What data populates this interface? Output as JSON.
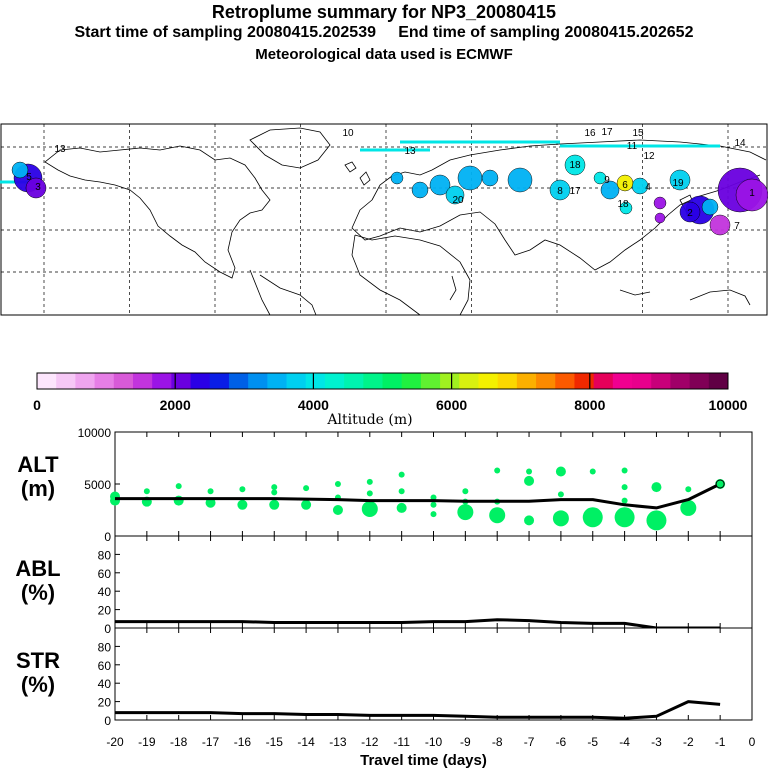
{
  "header": {
    "title": "Retroplume summary for NP3_20080415",
    "sampling_line": "Start time of sampling 20080415.202539     End time of sampling 20080415.202652",
    "met_line": "Meteorological data used is ECMWF"
  },
  "colorbar": {
    "label": "Altitude (m)",
    "tick_labels": [
      "0",
      "2000",
      "4000",
      "6000",
      "8000",
      "10000"
    ],
    "colors": [
      "#fde6fd",
      "#f6c8f6",
      "#efa5ef",
      "#e67ee6",
      "#d85ad8",
      "#c234dd",
      "#9b14e6",
      "#6a00e0",
      "#2a00e6",
      "#0a1ee6",
      "#0060e6",
      "#0090f0",
      "#00b2f4",
      "#00d0f0",
      "#00e6e6",
      "#00f2d0",
      "#00f4b0",
      "#00f48a",
      "#00f064",
      "#20f040",
      "#60f030",
      "#a0f020",
      "#d8f010",
      "#f4f000",
      "#fcd800",
      "#fcb000",
      "#fc8a00",
      "#fc5a00",
      "#f02800",
      "#e6005a",
      "#f00090",
      "#e8008c",
      "#c8007a",
      "#a00068",
      "#800056",
      "#600044"
    ]
  },
  "map": {
    "labels": [
      "13",
      "10",
      "16",
      "17",
      "15",
      "11",
      "12",
      "14",
      "18",
      "3",
      "20",
      "8",
      "5",
      "7",
      "9",
      "6",
      "4",
      "2",
      "1",
      "19",
      "13",
      "17",
      "18"
    ]
  },
  "chart_data": [
    {
      "type": "line",
      "panel": "ALT",
      "ylabel": "ALT (m)",
      "ylabel_lines": [
        "ALT",
        "(m)"
      ],
      "ylim": [
        0,
        10000
      ],
      "yticks": [
        "10000",
        "5000",
        "0"
      ],
      "x": [
        -20,
        -19,
        -18,
        -17,
        -16,
        -15,
        -14,
        -13,
        -12,
        -11,
        -10,
        -9,
        -8,
        -7,
        -6,
        -5,
        -4,
        -3,
        -2,
        -1
      ],
      "series": [
        {
          "name": "mean altitude",
          "values": [
            3600,
            3600,
            3600,
            3600,
            3600,
            3600,
            3550,
            3500,
            3400,
            3400,
            3400,
            3350,
            3350,
            3350,
            3500,
            3500,
            3000,
            2700,
            3500,
            5000
          ]
        }
      ],
      "scatter_color": "#00f064",
      "scatter_points": [
        {
          "x": -20,
          "y": 3800,
          "size": 2
        },
        {
          "x": -20,
          "y": 3400,
          "size": 2
        },
        {
          "x": -19,
          "y": 4300,
          "size": 1
        },
        {
          "x": -19,
          "y": 3300,
          "size": 2
        },
        {
          "x": -18,
          "y": 4800,
          "size": 1
        },
        {
          "x": -18,
          "y": 3400,
          "size": 2
        },
        {
          "x": -17,
          "y": 4300,
          "size": 1
        },
        {
          "x": -17,
          "y": 3200,
          "size": 2
        },
        {
          "x": -16,
          "y": 4500,
          "size": 1
        },
        {
          "x": -16,
          "y": 3000,
          "size": 2
        },
        {
          "x": -15,
          "y": 4700,
          "size": 1
        },
        {
          "x": -15,
          "y": 4200,
          "size": 1
        },
        {
          "x": -15,
          "y": 3000,
          "size": 2
        },
        {
          "x": -14,
          "y": 4600,
          "size": 1
        },
        {
          "x": -14,
          "y": 3000,
          "size": 2
        },
        {
          "x": -13,
          "y": 5000,
          "size": 1
        },
        {
          "x": -13,
          "y": 3700,
          "size": 1
        },
        {
          "x": -13,
          "y": 2500,
          "size": 2
        },
        {
          "x": -12,
          "y": 5200,
          "size": 1
        },
        {
          "x": -12,
          "y": 4100,
          "size": 1
        },
        {
          "x": -12,
          "y": 2600,
          "size": 3
        },
        {
          "x": -11,
          "y": 5900,
          "size": 1
        },
        {
          "x": -11,
          "y": 4300,
          "size": 1
        },
        {
          "x": -11,
          "y": 2700,
          "size": 2
        },
        {
          "x": -10,
          "y": 3700,
          "size": 1
        },
        {
          "x": -10,
          "y": 3000,
          "size": 1
        },
        {
          "x": -10,
          "y": 2100,
          "size": 1
        },
        {
          "x": -9,
          "y": 4300,
          "size": 1
        },
        {
          "x": -9,
          "y": 3300,
          "size": 1
        },
        {
          "x": -9,
          "y": 2300,
          "size": 3
        },
        {
          "x": -8,
          "y": 6300,
          "size": 1
        },
        {
          "x": -8,
          "y": 3300,
          "size": 1
        },
        {
          "x": -8,
          "y": 2000,
          "size": 3
        },
        {
          "x": -7,
          "y": 6200,
          "size": 1
        },
        {
          "x": -7,
          "y": 5300,
          "size": 2
        },
        {
          "x": -7,
          "y": 1500,
          "size": 2
        },
        {
          "x": -6,
          "y": 6200,
          "size": 2
        },
        {
          "x": -6,
          "y": 4000,
          "size": 1
        },
        {
          "x": -6,
          "y": 1700,
          "size": 3
        },
        {
          "x": -5,
          "y": 6200,
          "size": 1
        },
        {
          "x": -5,
          "y": 1800,
          "size": 4
        },
        {
          "x": -4,
          "y": 6300,
          "size": 1
        },
        {
          "x": -4,
          "y": 4700,
          "size": 1
        },
        {
          "x": -4,
          "y": 3400,
          "size": 1
        },
        {
          "x": -4,
          "y": 1800,
          "size": 4
        },
        {
          "x": -3,
          "y": 4700,
          "size": 2
        },
        {
          "x": -3,
          "y": 1500,
          "size": 4
        },
        {
          "x": -2,
          "y": 4500,
          "size": 1
        },
        {
          "x": -2,
          "y": 2700,
          "size": 3
        },
        {
          "x": -1,
          "y": 5000,
          "size": 2
        }
      ]
    },
    {
      "type": "line",
      "panel": "ABL",
      "ylabel": "ABL (%)",
      "ylabel_lines": [
        "ABL",
        "(%)"
      ],
      "ylim": [
        0,
        100
      ],
      "yticks": [
        "80",
        "60",
        "40",
        "20",
        "0"
      ],
      "x": [
        -20,
        -19,
        -18,
        -17,
        -16,
        -15,
        -14,
        -13,
        -12,
        -11,
        -10,
        -9,
        -8,
        -7,
        -6,
        -5,
        -4,
        -3,
        -2,
        -1
      ],
      "series": [
        {
          "name": "fraction in ABL",
          "values": [
            7,
            7,
            7,
            7,
            7,
            6,
            6,
            6,
            6,
            6,
            7,
            7,
            9,
            8,
            6,
            5,
            5,
            0,
            0,
            0
          ]
        }
      ]
    },
    {
      "type": "line",
      "panel": "STR",
      "ylabel": "STR (%)",
      "ylabel_lines": [
        "STR",
        "(%)"
      ],
      "ylim": [
        0,
        100
      ],
      "yticks": [
        "80",
        "60",
        "40",
        "20",
        "0"
      ],
      "xlabel": "Travel time (days)",
      "xticks": [
        "-20",
        "-19",
        "-18",
        "-17",
        "-16",
        "-15",
        "-14",
        "-13",
        "-12",
        "-11",
        "-10",
        "-9",
        "-8",
        "-7",
        "-6",
        "-5",
        "-4",
        "-3",
        "-2",
        "-1",
        "0"
      ],
      "x": [
        -20,
        -19,
        -18,
        -17,
        -16,
        -15,
        -14,
        -13,
        -12,
        -11,
        -10,
        -9,
        -8,
        -7,
        -6,
        -5,
        -4,
        -3,
        -2,
        -1
      ],
      "series": [
        {
          "name": "fraction in stratosphere",
          "values": [
            8,
            8,
            8,
            8,
            7,
            7,
            6,
            6,
            5,
            5,
            5,
            4,
            3,
            3,
            3,
            3,
            2,
            4,
            20,
            17
          ]
        }
      ]
    }
  ]
}
